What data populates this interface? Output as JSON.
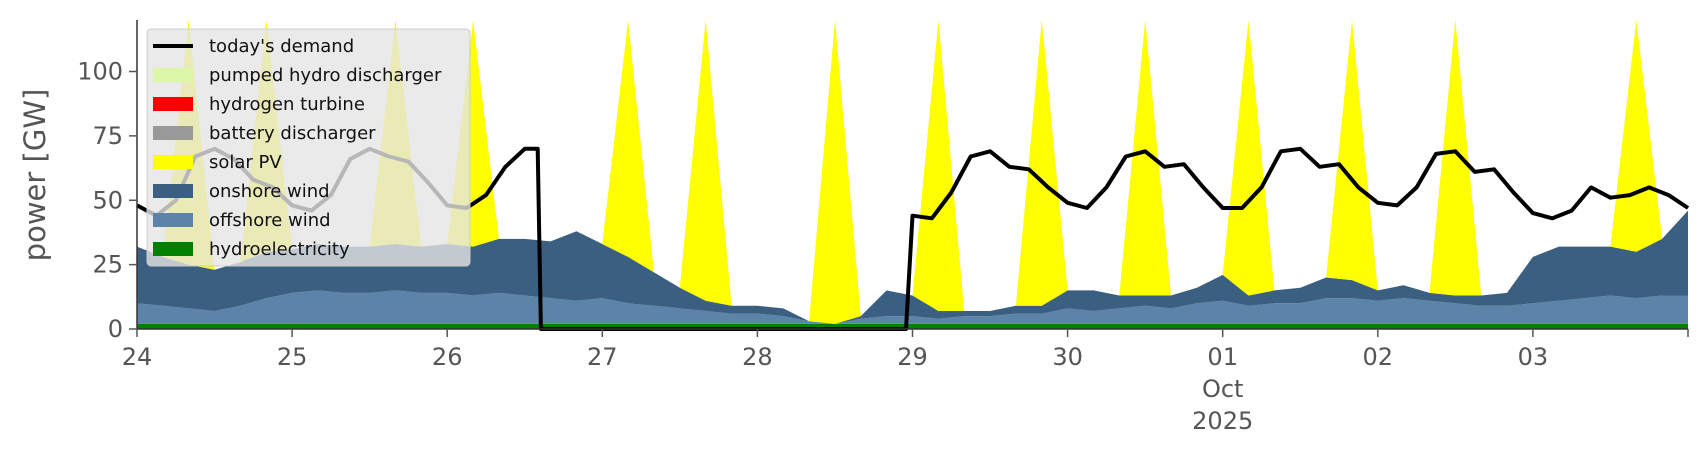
{
  "chart_data": {
    "type": "area",
    "ylabel": "power [GW]",
    "ylim": [
      0,
      120
    ],
    "yticks": [
      0,
      25,
      50,
      75,
      100
    ],
    "xlim": [
      "2025-09-24",
      "2025-10-04"
    ],
    "xticks": [
      {
        "date": "2025-09-24",
        "label": "24"
      },
      {
        "date": "2025-09-25",
        "label": "25"
      },
      {
        "date": "2025-09-26",
        "label": "26"
      },
      {
        "date": "2025-09-27",
        "label": "27"
      },
      {
        "date": "2025-09-28",
        "label": "28"
      },
      {
        "date": "2025-09-29",
        "label": "29"
      },
      {
        "date": "2025-09-30",
        "label": "30"
      },
      {
        "date": "2025-10-01",
        "label": "01",
        "sub1": "Oct",
        "sub2": "2025"
      },
      {
        "date": "2025-10-02",
        "label": "02"
      },
      {
        "date": "2025-10-03",
        "label": "03"
      }
    ],
    "grid": false,
    "legend_position": "top-left",
    "series": [
      {
        "name": "hydroelectricity",
        "color": "#008000",
        "values": [
          2,
          2,
          2,
          2,
          2,
          2,
          2,
          2,
          2,
          2,
          2,
          2,
          2,
          2,
          2,
          2,
          2,
          2,
          2,
          2,
          2,
          2,
          2,
          2,
          2,
          2,
          2,
          2,
          2,
          2,
          2,
          2,
          2,
          2,
          2,
          2,
          2,
          2,
          2,
          2,
          2,
          2,
          2,
          2,
          2,
          2,
          2,
          2,
          2,
          2,
          2,
          2,
          2,
          2,
          2,
          2,
          2,
          2,
          2,
          2,
          2
        ]
      },
      {
        "name": "offshore wind",
        "color": "#5b84a8",
        "values": [
          8,
          7,
          6,
          5,
          7,
          10,
          12,
          13,
          12,
          12,
          13,
          12,
          12,
          11,
          12,
          11,
          10,
          9,
          10,
          8,
          7,
          6,
          5,
          4,
          4,
          3,
          1,
          0,
          2,
          3,
          3,
          2,
          3,
          3,
          4,
          4,
          6,
          5,
          6,
          7,
          6,
          8,
          9,
          7,
          8,
          8,
          10,
          10,
          9,
          10,
          9,
          8,
          7,
          7,
          8,
          9,
          10,
          11,
          10,
          11,
          11
        ]
      },
      {
        "name": "onshore wind",
        "color": "#3a5f81",
        "values": [
          22,
          19,
          17,
          16,
          17,
          18,
          17,
          18,
          18,
          18,
          18,
          18,
          19,
          19,
          21,
          22,
          22,
          27,
          21,
          18,
          13,
          8,
          4,
          3,
          3,
          3,
          0,
          0,
          1,
          10,
          8,
          3,
          2,
          2,
          3,
          3,
          7,
          8,
          5,
          4,
          5,
          6,
          10,
          4,
          5,
          6,
          8,
          7,
          4,
          5,
          3,
          3,
          4,
          5,
          18,
          21,
          20,
          19,
          18,
          22,
          33
        ]
      },
      {
        "name": "solar PV",
        "color": "#ffff00",
        "values": [
          0,
          0,
          120,
          0,
          0,
          120,
          0,
          0,
          0,
          0,
          120,
          0,
          0,
          120,
          0,
          0,
          0,
          0,
          0,
          120,
          0,
          0,
          120,
          0,
          0,
          0,
          0,
          120,
          0,
          0,
          0,
          120,
          0,
          0,
          0,
          120,
          0,
          0,
          0,
          120,
          0,
          0,
          0,
          120,
          0,
          0,
          0,
          120,
          0,
          0,
          0,
          120,
          0,
          0,
          0,
          0,
          0,
          0,
          120,
          0,
          0
        ]
      },
      {
        "name": "battery discharger",
        "color": "#999999",
        "values": [
          0,
          0,
          0,
          0,
          0,
          0,
          0,
          0,
          0,
          0,
          0,
          0,
          0,
          0,
          0,
          0,
          0,
          0,
          0,
          0,
          0,
          0,
          0,
          0,
          0,
          0,
          0,
          0,
          0,
          0,
          0,
          0,
          0,
          0,
          0,
          0,
          0,
          0,
          0,
          0,
          0,
          0,
          0,
          0,
          0,
          0,
          0,
          0,
          0,
          0,
          0,
          0,
          0,
          0,
          0,
          0,
          0,
          0,
          0,
          0,
          0
        ]
      },
      {
        "name": "hydrogen turbine",
        "color": "#ff0000",
        "values": [
          0,
          0,
          0,
          0,
          0,
          0,
          0,
          0,
          0,
          0,
          0,
          0,
          0,
          0,
          0,
          0,
          0,
          0,
          0,
          0,
          0,
          0,
          0,
          0,
          0,
          0,
          0,
          0,
          0,
          0,
          0,
          0,
          0,
          0,
          0,
          0,
          0,
          0,
          0,
          0,
          0,
          0,
          0,
          0,
          0,
          0,
          0,
          0,
          0,
          0,
          0,
          0,
          0,
          0,
          0,
          0,
          0,
          0,
          0,
          0,
          0
        ]
      },
      {
        "name": "pumped hydro discharger",
        "color": "#ddf7a8",
        "values": [
          0,
          0,
          0,
          0,
          0,
          0,
          0,
          0,
          0,
          0,
          0,
          0,
          0,
          0,
          0,
          0,
          0,
          0,
          0,
          0,
          0,
          0,
          0,
          0,
          0,
          0,
          0,
          0,
          0,
          0,
          0,
          0,
          0,
          0,
          0,
          0,
          0,
          0,
          0,
          0,
          0,
          0,
          0,
          0,
          0,
          0,
          0,
          0,
          0,
          0,
          0,
          0,
          0,
          0,
          0,
          0,
          0,
          0,
          0,
          0,
          0
        ]
      }
    ],
    "demand": {
      "name": "today's demand",
      "color": "#000000",
      "points": [
        [
          "2025-09-24T00:00",
          48
        ],
        [
          "2025-09-24T03:00",
          44
        ],
        [
          "2025-09-24T06:00",
          50
        ],
        [
          "2025-09-24T09:00",
          67
        ],
        [
          "2025-09-24T12:00",
          70
        ],
        [
          "2025-09-24T15:00",
          66
        ],
        [
          "2025-09-24T18:00",
          58
        ],
        [
          "2025-09-24T21:00",
          55
        ],
        [
          "2025-09-25T00:00",
          48
        ],
        [
          "2025-09-25T03:00",
          46
        ],
        [
          "2025-09-25T06:00",
          52
        ],
        [
          "2025-09-25T09:00",
          66
        ],
        [
          "2025-09-25T12:00",
          70
        ],
        [
          "2025-09-25T15:00",
          67
        ],
        [
          "2025-09-25T18:00",
          65
        ],
        [
          "2025-09-25T21:00",
          57
        ],
        [
          "2025-09-26T00:00",
          48
        ],
        [
          "2025-09-26T03:00",
          47
        ],
        [
          "2025-09-26T06:00",
          52
        ],
        [
          "2025-09-26T09:00",
          63
        ],
        [
          "2025-09-26T12:00",
          70
        ],
        [
          "2025-09-26T14:00",
          70
        ],
        [
          "2025-09-26T14:30",
          0
        ],
        [
          "2025-09-28T23:00",
          0
        ],
        [
          "2025-09-29T00:00",
          44
        ],
        [
          "2025-09-29T03:00",
          43
        ],
        [
          "2025-09-29T06:00",
          53
        ],
        [
          "2025-09-29T09:00",
          67
        ],
        [
          "2025-09-29T12:00",
          69
        ],
        [
          "2025-09-29T15:00",
          63
        ],
        [
          "2025-09-29T18:00",
          62
        ],
        [
          "2025-09-29T21:00",
          55
        ],
        [
          "2025-09-30T00:00",
          49
        ],
        [
          "2025-09-30T03:00",
          47
        ],
        [
          "2025-09-30T06:00",
          55
        ],
        [
          "2025-09-30T09:00",
          67
        ],
        [
          "2025-09-30T12:00",
          69
        ],
        [
          "2025-09-30T15:00",
          63
        ],
        [
          "2025-09-30T18:00",
          64
        ],
        [
          "2025-09-30T21:00",
          55
        ],
        [
          "2025-10-01T00:00",
          47
        ],
        [
          "2025-10-01T03:00",
          47
        ],
        [
          "2025-10-01T06:00",
          55
        ],
        [
          "2025-10-01T09:00",
          69
        ],
        [
          "2025-10-01T12:00",
          70
        ],
        [
          "2025-10-01T15:00",
          63
        ],
        [
          "2025-10-01T18:00",
          64
        ],
        [
          "2025-10-01T21:00",
          55
        ],
        [
          "2025-10-02T00:00",
          49
        ],
        [
          "2025-10-02T03:00",
          48
        ],
        [
          "2025-10-02T06:00",
          55
        ],
        [
          "2025-10-02T09:00",
          68
        ],
        [
          "2025-10-02T12:00",
          69
        ],
        [
          "2025-10-02T15:00",
          61
        ],
        [
          "2025-10-02T18:00",
          62
        ],
        [
          "2025-10-02T21:00",
          53
        ],
        [
          "2025-10-03T00:00",
          45
        ],
        [
          "2025-10-03T03:00",
          43
        ],
        [
          "2025-10-03T06:00",
          46
        ],
        [
          "2025-10-03T09:00",
          55
        ],
        [
          "2025-10-03T12:00",
          51
        ],
        [
          "2025-10-03T15:00",
          52
        ],
        [
          "2025-10-03T18:00",
          55
        ],
        [
          "2025-10-03T21:00",
          52
        ],
        [
          "2025-10-04T00:00",
          47
        ]
      ]
    },
    "legend_entries": [
      "today's demand",
      "pumped hydro discharger",
      "hydrogen turbine",
      "battery discharger",
      "solar PV",
      "onshore wind",
      "offshore wind",
      "hydroelectricity"
    ],
    "legend_colors": [
      "#000000",
      "#ddf7a8",
      "#ff0000",
      "#999999",
      "#ffff00",
      "#3a5f81",
      "#5b84a8",
      "#008000"
    ]
  }
}
